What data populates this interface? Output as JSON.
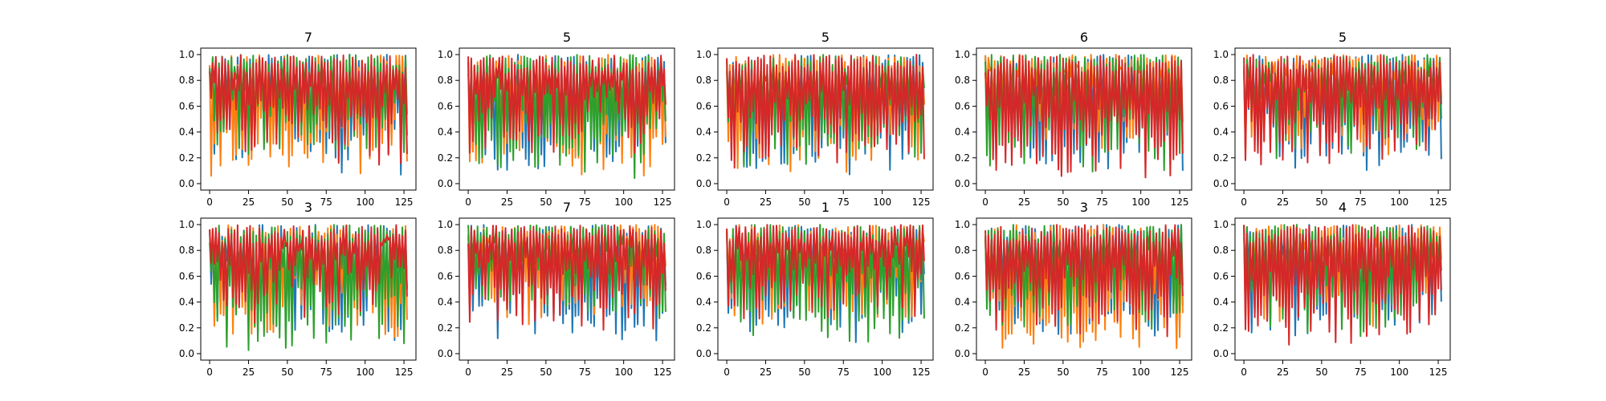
{
  "chart_data": [
    {
      "type": "line",
      "title": "7",
      "x_range": [
        0,
        127
      ],
      "xticks": [
        0,
        25,
        50,
        75,
        100,
        125
      ],
      "ylim": [
        0,
        1
      ],
      "yticks": [
        "0.0",
        "0.2",
        "0.4",
        "0.6",
        "0.8",
        "1.0"
      ],
      "series_count": 4,
      "seed": 11
    },
    {
      "type": "line",
      "title": "5",
      "x_range": [
        0,
        127
      ],
      "xticks": [
        0,
        25,
        50,
        75,
        100,
        125
      ],
      "ylim": [
        0,
        1
      ],
      "yticks": [
        "0.0",
        "0.2",
        "0.4",
        "0.6",
        "0.8",
        "1.0"
      ],
      "series_count": 4,
      "seed": 23
    },
    {
      "type": "line",
      "title": "5",
      "x_range": [
        0,
        127
      ],
      "xticks": [
        0,
        25,
        50,
        75,
        100,
        125
      ],
      "ylim": [
        0,
        1
      ],
      "yticks": [
        "0.0",
        "0.2",
        "0.4",
        "0.6",
        "0.8",
        "1.0"
      ],
      "series_count": 4,
      "seed": 37
    },
    {
      "type": "line",
      "title": "6",
      "x_range": [
        0,
        127
      ],
      "xticks": [
        0,
        25,
        50,
        75,
        100,
        125
      ],
      "ylim": [
        0,
        1
      ],
      "yticks": [
        "0.0",
        "0.2",
        "0.4",
        "0.6",
        "0.8",
        "1.0"
      ],
      "series_count": 4,
      "seed": 41
    },
    {
      "type": "line",
      "title": "5",
      "x_range": [
        0,
        127
      ],
      "xticks": [
        0,
        25,
        50,
        75,
        100,
        125
      ],
      "ylim": [
        0,
        1
      ],
      "yticks": [
        "0.0",
        "0.2",
        "0.4",
        "0.6",
        "0.8",
        "1.0"
      ],
      "series_count": 4,
      "seed": 53
    },
    {
      "type": "line",
      "title": "3",
      "x_range": [
        0,
        127
      ],
      "xticks": [
        0,
        25,
        50,
        75,
        100,
        125
      ],
      "ylim": [
        0,
        1
      ],
      "yticks": [
        "0.0",
        "0.2",
        "0.4",
        "0.6",
        "0.8",
        "1.0"
      ],
      "series_count": 4,
      "seed": 67
    },
    {
      "type": "line",
      "title": "7",
      "x_range": [
        0,
        127
      ],
      "xticks": [
        0,
        25,
        50,
        75,
        100,
        125
      ],
      "ylim": [
        0,
        1
      ],
      "yticks": [
        "0.0",
        "0.2",
        "0.4",
        "0.6",
        "0.8",
        "1.0"
      ],
      "series_count": 4,
      "seed": 71
    },
    {
      "type": "line",
      "title": "1",
      "x_range": [
        0,
        127
      ],
      "xticks": [
        0,
        25,
        50,
        75,
        100,
        125
      ],
      "ylim": [
        0,
        1
      ],
      "yticks": [
        "0.0",
        "0.2",
        "0.4",
        "0.6",
        "0.8",
        "1.0"
      ],
      "series_count": 4,
      "seed": 83
    },
    {
      "type": "line",
      "title": "3",
      "x_range": [
        0,
        127
      ],
      "xticks": [
        0,
        25,
        50,
        75,
        100,
        125
      ],
      "ylim": [
        0,
        1
      ],
      "yticks": [
        "0.0",
        "0.2",
        "0.4",
        "0.6",
        "0.8",
        "1.0"
      ],
      "series_count": 4,
      "seed": 97
    },
    {
      "type": "line",
      "title": "4",
      "x_range": [
        0,
        127
      ],
      "xticks": [
        0,
        25,
        50,
        75,
        100,
        125
      ],
      "ylim": [
        0,
        1
      ],
      "yticks": [
        "0.0",
        "0.2",
        "0.4",
        "0.6",
        "0.8",
        "1.0"
      ],
      "series_count": 4,
      "seed": 101
    }
  ],
  "colors": {
    "series": [
      "#1f77b4",
      "#ff7f0e",
      "#2ca02c",
      "#d62728"
    ],
    "axes": "#000000",
    "background": "#ffffff"
  }
}
